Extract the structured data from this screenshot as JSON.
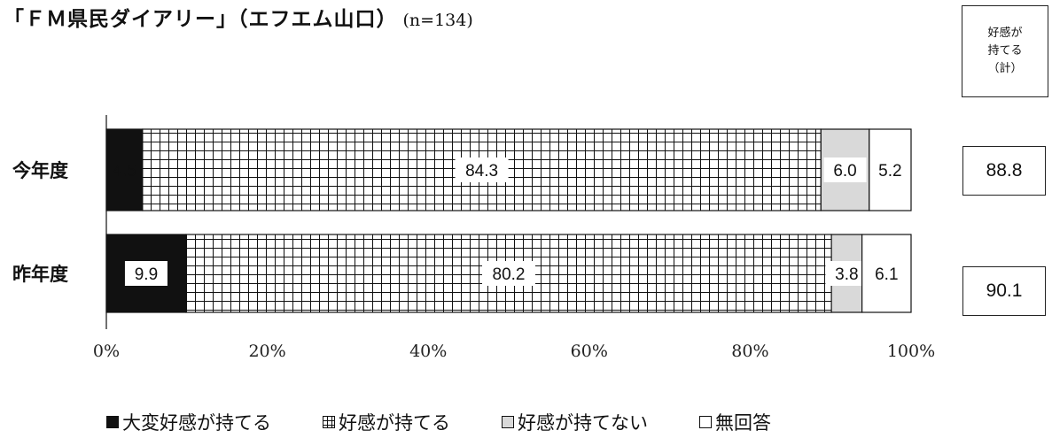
{
  "header": {
    "title": "「ＦＭ県民ダイアリー」（エフエム山口）",
    "sample_size": "(n=134)"
  },
  "total_column": {
    "header": "好感が\n持てる\n（計）",
    "values": [
      "88.8",
      "90.1"
    ]
  },
  "colors": {
    "very_favorable": "#111111",
    "favorable_grid": "#111111",
    "not_favorable": "#d9d9d9",
    "no_answer": "#ffffff"
  },
  "chart_data": {
    "type": "bar",
    "orientation": "horizontal",
    "stacked": true,
    "percent_stacked": true,
    "categories": [
      "今年度",
      "昨年度"
    ],
    "series": [
      {
        "name": "大変好感が持てる",
        "values": [
          4.5,
          9.9
        ]
      },
      {
        "name": "好感が持てる",
        "values": [
          84.3,
          80.2
        ]
      },
      {
        "name": "好感が持てない",
        "values": [
          6.0,
          3.8
        ]
      },
      {
        "name": "無回答",
        "values": [
          5.2,
          6.1
        ]
      }
    ],
    "data_labels": [
      [
        "4.5",
        "84.3",
        "6.0",
        "5.2"
      ],
      [
        "9.9",
        "80.2",
        "3.8",
        "6.1"
      ]
    ],
    "x_ticks": [
      "0%",
      "20%",
      "40%",
      "60%",
      "80%",
      "100%"
    ],
    "xlim": [
      0,
      100
    ],
    "grid": false,
    "legend": "bottom"
  }
}
